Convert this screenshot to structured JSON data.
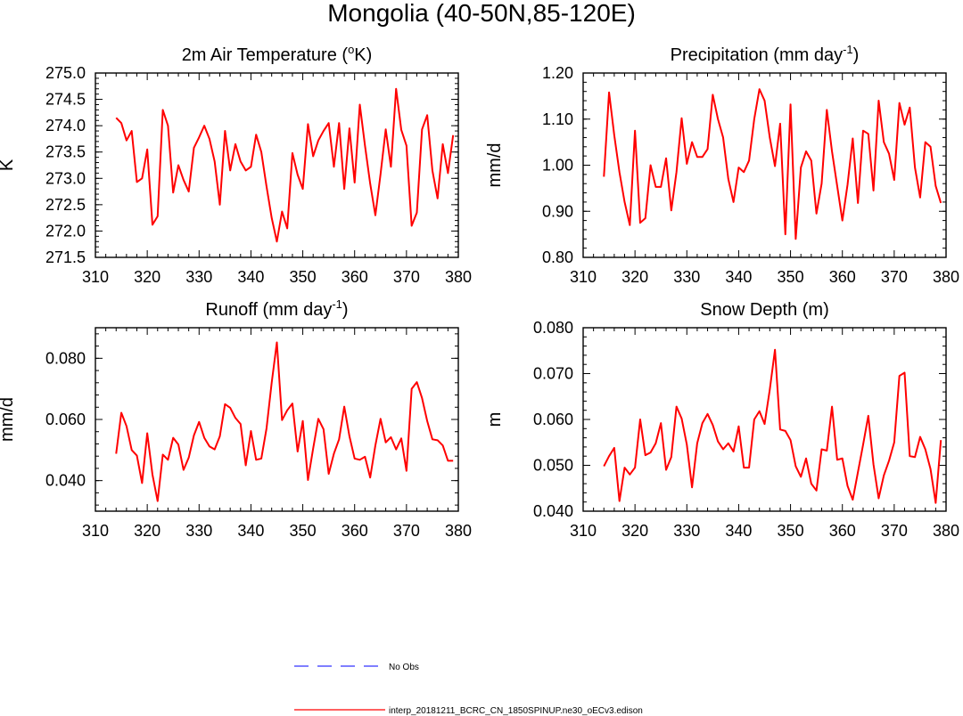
{
  "figure": {
    "title": "Mongolia (40-50N,85-120E)"
  },
  "legend": {
    "entries": [
      {
        "label": "No Obs",
        "color": "#3333ff",
        "style": "dashed"
      },
      {
        "label": "interp_20181211_BCRC_CN_1850SPINUP.ne30_oECv3.edison",
        "color": "#ff0000",
        "style": "solid"
      }
    ]
  },
  "chart_data": [
    {
      "type": "line",
      "title": "2m Air Temperature (oK)",
      "title_parts": {
        "pre": "2m Air Temperature (",
        "sup": "o",
        "post": "K)"
      },
      "xlabel": "",
      "ylabel": "K",
      "xlim": [
        310,
        380
      ],
      "ylim": [
        271.5,
        275.0
      ],
      "x_ticks": [
        310,
        320,
        330,
        340,
        350,
        360,
        370,
        380
      ],
      "y_ticks": [
        271.5,
        272.0,
        272.5,
        273.0,
        273.5,
        274.0,
        274.5,
        275.0
      ],
      "y_tick_labels": [
        "271.5",
        "272.0",
        "272.5",
        "273.0",
        "273.5",
        "274.0",
        "274.5",
        "275.0"
      ],
      "grid": false,
      "x_start": 314,
      "series": [
        {
          "color": "#ff0000",
          "values": [
            274.15,
            274.05,
            273.72,
            273.9,
            272.93,
            273.0,
            273.55,
            272.12,
            272.28,
            274.3,
            274.0,
            272.73,
            273.25,
            272.97,
            272.75,
            273.58,
            273.78,
            274.0,
            273.75,
            273.32,
            272.5,
            273.9,
            273.15,
            273.65,
            273.32,
            273.15,
            273.22,
            273.83,
            273.5,
            272.85,
            272.25,
            271.8,
            272.37,
            272.05,
            273.48,
            273.07,
            272.8,
            274.03,
            273.42,
            273.72,
            273.9,
            274.05,
            273.22,
            274.05,
            272.8,
            273.95,
            272.92,
            274.4,
            273.62,
            272.9,
            272.3,
            273.08,
            273.93,
            273.22,
            274.7,
            273.92,
            273.62,
            272.1,
            272.35,
            273.93,
            274.2,
            273.15,
            272.62,
            273.65,
            273.1,
            273.82
          ]
        }
      ]
    },
    {
      "type": "line",
      "title": "Precipitation (mm day-1)",
      "title_parts": {
        "pre": "Precipitation (mm day",
        "sup": "-1",
        "post": ")"
      },
      "xlabel": "",
      "ylabel": "mm/d",
      "xlim": [
        310,
        380
      ],
      "ylim": [
        0.8,
        1.2
      ],
      "x_ticks": [
        310,
        320,
        330,
        340,
        350,
        360,
        370,
        380
      ],
      "y_ticks": [
        0.8,
        0.9,
        1.0,
        1.1,
        1.2
      ],
      "y_tick_labels": [
        "0.80",
        "0.90",
        "1.00",
        "1.10",
        "1.20"
      ],
      "grid": false,
      "x_start": 314,
      "series": [
        {
          "color": "#ff0000",
          "values": [
            0.975,
            1.158,
            1.065,
            0.985,
            0.92,
            0.87,
            1.075,
            0.875,
            0.885,
            1.0,
            0.953,
            0.953,
            1.015,
            0.902,
            0.985,
            1.102,
            1.003,
            1.05,
            1.018,
            1.018,
            1.035,
            1.153,
            1.1,
            1.06,
            0.97,
            0.92,
            0.995,
            0.985,
            1.01,
            1.1,
            1.165,
            1.14,
            1.06,
            0.998,
            1.09,
            0.85,
            1.132,
            0.84,
            0.995,
            1.03,
            1.01,
            0.895,
            0.96,
            1.12,
            1.03,
            0.955,
            0.88,
            0.958,
            1.058,
            0.918,
            1.075,
            1.068,
            0.945,
            1.14,
            1.05,
            1.025,
            0.968,
            1.135,
            1.088,
            1.125,
            0.995,
            0.93,
            1.05,
            1.04,
            0.955,
            0.918
          ]
        }
      ]
    },
    {
      "type": "line",
      "title": "Runoff (mm day-1)",
      "title_parts": {
        "pre": "Runoff (mm day",
        "sup": "-1",
        "post": ")"
      },
      "xlabel": "",
      "ylabel": "mm/d",
      "xlim": [
        310,
        380
      ],
      "ylim": [
        0.03,
        0.09
      ],
      "x_ticks": [
        310,
        320,
        330,
        340,
        350,
        360,
        370,
        380
      ],
      "y_ticks": [
        0.04,
        0.06,
        0.08
      ],
      "y_tick_labels": [
        "0.040",
        "0.060",
        "0.080"
      ],
      "grid": false,
      "x_start": 314,
      "series": [
        {
          "color": "#ff0000",
          "values": [
            0.0488,
            0.0622,
            0.0578,
            0.05,
            0.0482,
            0.0392,
            0.0555,
            0.042,
            0.0333,
            0.0485,
            0.0468,
            0.054,
            0.0518,
            0.0435,
            0.0475,
            0.0548,
            0.0592,
            0.054,
            0.0512,
            0.0502,
            0.0545,
            0.065,
            0.0638,
            0.0605,
            0.0585,
            0.045,
            0.0562,
            0.0468,
            0.0472,
            0.057,
            0.072,
            0.0852,
            0.0598,
            0.063,
            0.0652,
            0.0495,
            0.0595,
            0.0402,
            0.0505,
            0.0602,
            0.0568,
            0.0422,
            0.0488,
            0.0535,
            0.0642,
            0.0545,
            0.0472,
            0.0468,
            0.0478,
            0.041,
            0.0515,
            0.0602,
            0.0525,
            0.0542,
            0.0502,
            0.0538,
            0.0432,
            0.07,
            0.0722,
            0.067,
            0.0595,
            0.0535,
            0.0532,
            0.0515,
            0.0465,
            0.0465
          ]
        }
      ]
    },
    {
      "type": "line",
      "title": "Snow Depth (m)",
      "xlabel": "",
      "ylabel": "m",
      "xlim": [
        310,
        380
      ],
      "ylim": [
        0.04,
        0.08
      ],
      "x_ticks": [
        310,
        320,
        330,
        340,
        350,
        360,
        370,
        380
      ],
      "y_ticks": [
        0.04,
        0.05,
        0.06,
        0.07,
        0.08
      ],
      "y_tick_labels": [
        "0.040",
        "0.050",
        "0.060",
        "0.070",
        "0.080"
      ],
      "grid": false,
      "x_start": 314,
      "series": [
        {
          "color": "#ff0000",
          "values": [
            0.0498,
            0.052,
            0.0538,
            0.0422,
            0.0495,
            0.048,
            0.0495,
            0.06,
            0.0522,
            0.0528,
            0.0548,
            0.0592,
            0.049,
            0.0518,
            0.0628,
            0.0602,
            0.0545,
            0.0452,
            0.0548,
            0.0592,
            0.0612,
            0.0588,
            0.0552,
            0.0535,
            0.0548,
            0.053,
            0.0585,
            0.0495,
            0.0495,
            0.06,
            0.0618,
            0.059,
            0.0665,
            0.0752,
            0.0578,
            0.0575,
            0.0555,
            0.0498,
            0.0475,
            0.0515,
            0.046,
            0.0445,
            0.0535,
            0.0532,
            0.0628,
            0.0512,
            0.0515,
            0.0455,
            0.0425,
            0.0485,
            0.0545,
            0.0608,
            0.0502,
            0.0428,
            0.0478,
            0.051,
            0.055,
            0.0695,
            0.0702,
            0.052,
            0.0518,
            0.0562,
            0.0535,
            0.0492,
            0.0418,
            0.0555
          ]
        }
      ]
    }
  ]
}
